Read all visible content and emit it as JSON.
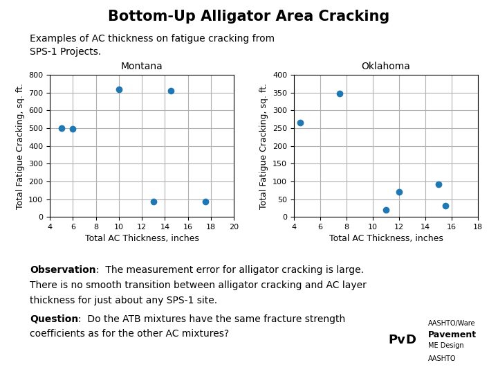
{
  "title": "Bottom-Up Alligator Area Cracking",
  "subtitle": [
    "Examples of AC thickness on fatigue cracking from",
    "SPS-1 Projects."
  ],
  "chart_data": [
    {
      "type": "scatter",
      "title": "Montana",
      "x": [
        5.0,
        6.0,
        10.0,
        13.0,
        14.5,
        17.5
      ],
      "values": [
        500,
        495,
        720,
        88,
        710,
        88
      ],
      "xlabel": "Total AC Thickness, inches",
      "ylabel": "Total Fatigue Cracking, sq. ft.",
      "xlim": [
        4,
        20
      ],
      "ylim": [
        0,
        800
      ],
      "xticks": [
        4,
        6,
        8,
        10,
        12,
        14,
        16,
        18,
        20
      ],
      "yticks": [
        0,
        100,
        200,
        300,
        400,
        500,
        600,
        700,
        800
      ],
      "grid": true
    },
    {
      "type": "scatter",
      "title": "Oklahoma",
      "x": [
        4.5,
        7.5,
        11.0,
        12.0,
        15.0,
        15.5
      ],
      "values": [
        265,
        348,
        20,
        70,
        92,
        32
      ],
      "xlabel": "Total AC Thickness, inches",
      "ylabel": "Total Fatigue Cracking, sq. ft.",
      "xlim": [
        4,
        18
      ],
      "ylim": [
        0,
        400
      ],
      "xticks": [
        4,
        6,
        8,
        10,
        12,
        14,
        16,
        18
      ],
      "yticks": [
        0,
        50,
        100,
        150,
        200,
        250,
        300,
        350,
        400
      ],
      "grid": true
    }
  ],
  "annotations": [
    {
      "label": "Observation",
      "text": [
        ":  The measurement error for alligator cracking is large.",
        "There is no smooth transition between alligator cracking and AC layer",
        "thickness for just about any SPS-1 site."
      ]
    },
    {
      "label": "Question",
      "text": [
        ":  Do the ATB mixtures have the same fracture strength",
        "coefficients as for the other AC mixtures?"
      ]
    }
  ],
  "logo": [
    "Pv",
    "D",
    "AASHTO/Ware",
    "Pavement",
    "ME Design",
    "AASHTO"
  ]
}
